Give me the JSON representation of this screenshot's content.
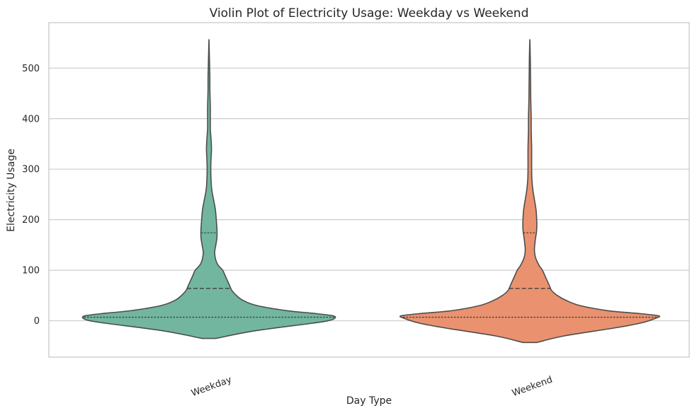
{
  "chart_data": {
    "type": "violin",
    "title": "Violin Plot of Electricity Usage: Weekday vs Weekend",
    "xlabel": "Day Type",
    "ylabel": "Electricity Usage",
    "ylim": [
      -72,
      590
    ],
    "yticks": [
      0,
      100,
      200,
      300,
      400,
      500
    ],
    "grid": "horizontal",
    "inner": "quartile",
    "series": [
      {
        "name": "Weekday",
        "color": "#72b6a0",
        "quartiles": [
          7,
          64,
          174
        ],
        "range": [
          -35,
          557
        ],
        "density": [
          [
            -35,
            0.03
          ],
          [
            -20,
            0.2
          ],
          [
            -5,
            0.45
          ],
          [
            0,
            0.52
          ],
          [
            5,
            0.55
          ],
          [
            10,
            0.54
          ],
          [
            15,
            0.45
          ],
          [
            20,
            0.34
          ],
          [
            30,
            0.21
          ],
          [
            40,
            0.15
          ],
          [
            50,
            0.12
          ],
          [
            60,
            0.1
          ],
          [
            70,
            0.09
          ],
          [
            80,
            0.08
          ],
          [
            90,
            0.07
          ],
          [
            100,
            0.06
          ],
          [
            110,
            0.04
          ],
          [
            120,
            0.03
          ],
          [
            135,
            0.025
          ],
          [
            150,
            0.03
          ],
          [
            165,
            0.035
          ],
          [
            180,
            0.035
          ],
          [
            200,
            0.032
          ],
          [
            220,
            0.028
          ],
          [
            240,
            0.02
          ],
          [
            260,
            0.012
          ],
          [
            280,
            0.009
          ],
          [
            300,
            0.008
          ],
          [
            320,
            0.009
          ],
          [
            340,
            0.011
          ],
          [
            360,
            0.009
          ],
          [
            380,
            0.006
          ],
          [
            400,
            0.006
          ],
          [
            420,
            0.006
          ],
          [
            440,
            0.005
          ],
          [
            460,
            0.004
          ],
          [
            480,
            0.004
          ],
          [
            500,
            0.003
          ],
          [
            520,
            0.002
          ],
          [
            540,
            0.001
          ],
          [
            557,
            0.0
          ]
        ]
      },
      {
        "name": "Weekend",
        "color": "#ea926f",
        "quartiles": [
          7,
          64,
          174
        ],
        "range": [
          -43,
          557
        ],
        "density": [
          [
            -43,
            0.03
          ],
          [
            -30,
            0.15
          ],
          [
            -15,
            0.36
          ],
          [
            -5,
            0.48
          ],
          [
            5,
            0.55
          ],
          [
            10,
            0.56
          ],
          [
            15,
            0.46
          ],
          [
            20,
            0.34
          ],
          [
            30,
            0.22
          ],
          [
            40,
            0.16
          ],
          [
            50,
            0.12
          ],
          [
            60,
            0.095
          ],
          [
            70,
            0.085
          ],
          [
            80,
            0.075
          ],
          [
            90,
            0.065
          ],
          [
            100,
            0.055
          ],
          [
            110,
            0.04
          ],
          [
            125,
            0.025
          ],
          [
            140,
            0.02
          ],
          [
            160,
            0.024
          ],
          [
            180,
            0.03
          ],
          [
            200,
            0.03
          ],
          [
            220,
            0.027
          ],
          [
            240,
            0.02
          ],
          [
            260,
            0.013
          ],
          [
            280,
            0.009
          ],
          [
            300,
            0.008
          ],
          [
            320,
            0.008
          ],
          [
            340,
            0.008
          ],
          [
            360,
            0.007
          ],
          [
            380,
            0.006
          ],
          [
            400,
            0.006
          ],
          [
            420,
            0.005
          ],
          [
            440,
            0.004
          ],
          [
            460,
            0.0035
          ],
          [
            480,
            0.003
          ],
          [
            500,
            0.0025
          ],
          [
            520,
            0.002
          ],
          [
            540,
            0.001
          ],
          [
            557,
            0.0
          ]
        ]
      }
    ]
  }
}
